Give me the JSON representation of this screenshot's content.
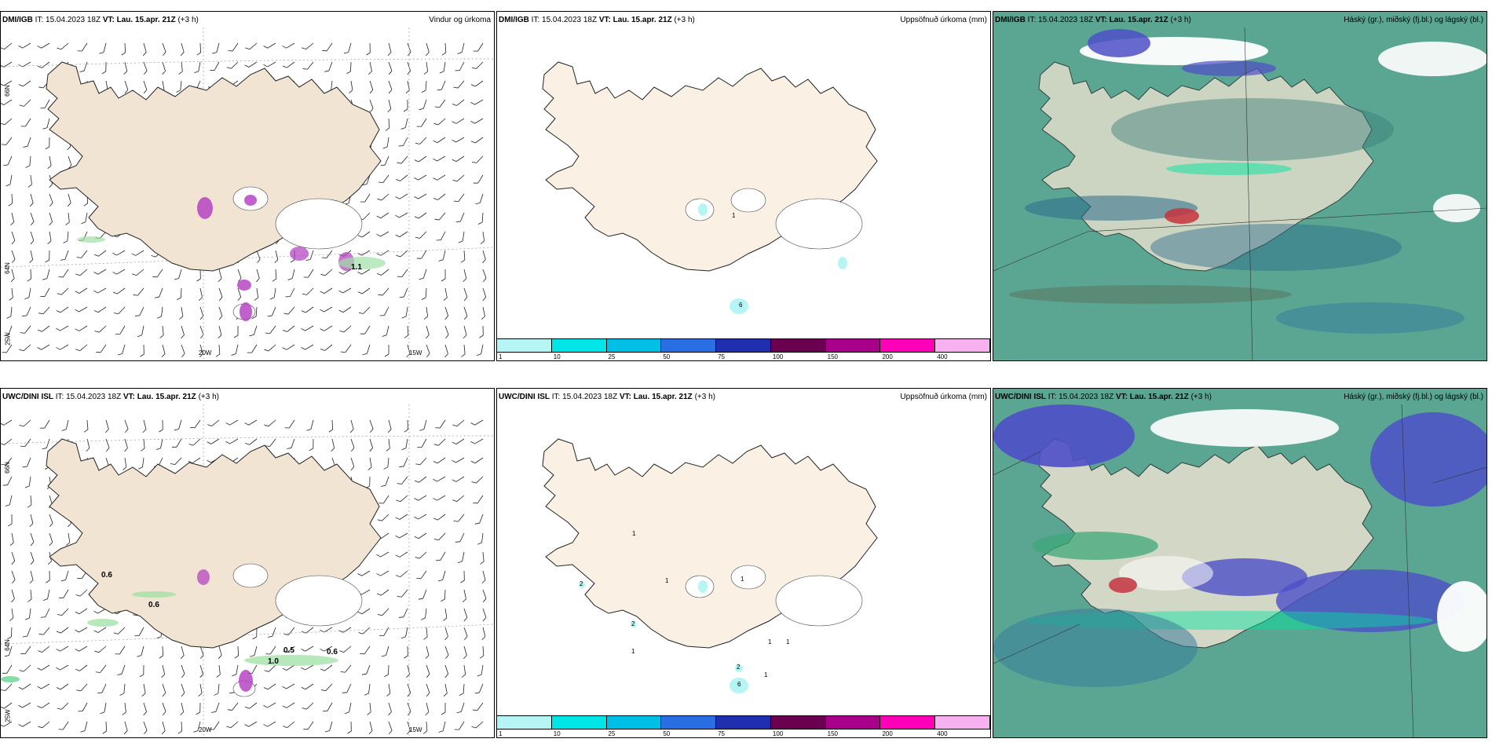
{
  "rows": [
    {
      "model": "DMI/IGB",
      "it_label": "IT:",
      "it_value": "15.04.2023 18Z",
      "vt_label": "VT:",
      "vt_value": "Lau. 15.apr. 21Z",
      "lead": "(+3 h)"
    },
    {
      "model": "UWC/DINI ISL",
      "it_label": "IT:",
      "it_value": "15.04.2023 18Z",
      "vt_label": "VT:",
      "vt_value": "Lau. 15.apr. 21Z",
      "lead": "(+3 h)"
    }
  ],
  "titles": {
    "wind": "Vindur og úrkoma",
    "accum": "Uppsöfnuð úrkoma (mm)",
    "clouds": "Háský (gr.), miðský (fj.bl.) og lágský (bl.)"
  },
  "lonlat": {
    "lat66": "66N",
    "lat64": "64N",
    "lon25": "25W",
    "lon20": "20W",
    "lon15": "15W"
  },
  "colorbar": {
    "ticks": [
      "1",
      "10",
      "25",
      "50",
      "75",
      "100",
      "150",
      "200",
      "400"
    ],
    "colors": [
      "#b5f5f5",
      "#00e5e8",
      "#00bfe6",
      "#2a6ee3",
      "#1f2fb0",
      "#6c0050",
      "#a8008a",
      "#ff00b8",
      "#f7b0f0"
    ]
  },
  "wind_values_bottom": [
    "0.6",
    "0.6",
    "0.5",
    "1.0",
    "0.6"
  ],
  "wind_values_top": [
    "1.1"
  ],
  "accum_values_top": [
    "1",
    "6"
  ],
  "accum_values_bottom": [
    "2",
    "2",
    "1",
    "1",
    "1",
    "1",
    "2",
    "6",
    "1",
    "1",
    "1"
  ],
  "colors": {
    "land": "#f2e4d3",
    "land_light": "#fbf0e4",
    "cloud_green": "#5aa692",
    "cloud_blue": "#4e4fc8",
    "cloud_dark": "#3a7d7a",
    "precip_magenta": "#b03ac0"
  }
}
